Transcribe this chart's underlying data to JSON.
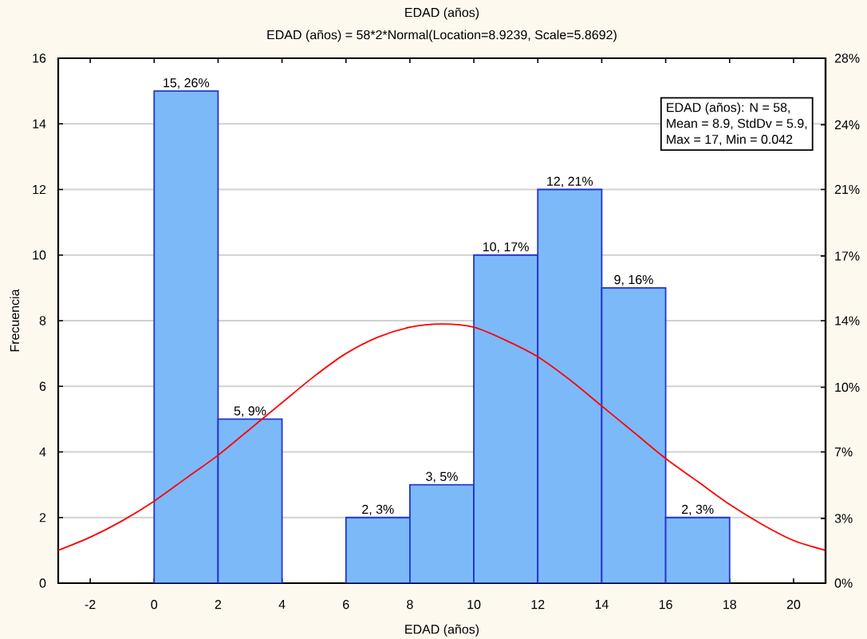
{
  "chart_data": {
    "type": "histogram",
    "title": "EDAD (años)",
    "subtitle": "EDAD (años) = 58*2*Normal(Location=8.9239, Scale=5.8692)",
    "xlabel": "EDAD (años)",
    "ylabel": "Frecuencia",
    "xlim": [
      -3,
      21
    ],
    "xticks": [
      -2,
      0,
      2,
      4,
      6,
      8,
      10,
      12,
      14,
      16,
      18,
      20
    ],
    "ylim": [
      0,
      16
    ],
    "yticks": [
      0,
      2,
      4,
      6,
      8,
      10,
      12,
      14,
      16
    ],
    "y2lim": [
      0,
      27.6
    ],
    "y2ticks": [
      {
        "value": 0,
        "label": "0%"
      },
      {
        "value": 3.4,
        "label": "3%"
      },
      {
        "value": 6.9,
        "label": "7%"
      },
      {
        "value": 10.3,
        "label": "10%"
      },
      {
        "value": 13.8,
        "label": "14%"
      },
      {
        "value": 17.2,
        "label": "17%"
      },
      {
        "value": 20.7,
        "label": "21%"
      },
      {
        "value": 24.1,
        "label": "24%"
      },
      {
        "value": 27.6,
        "label": "28%"
      }
    ],
    "grid": "y",
    "annotations": [
      "EDAD (años): N = 58,",
      "Mean = 8.9, StdDv = 5.9,",
      "Max = 17, Min = 0.042"
    ],
    "series": [
      {
        "type": "histogram",
        "color": "#7cb9f8",
        "bins": [
          0,
          2,
          4,
          6,
          8,
          10,
          12,
          14,
          16,
          18
        ],
        "values": [
          15,
          5,
          0,
          2,
          3,
          10,
          12,
          9,
          2
        ],
        "value_labels": [
          "15, 26%",
          "5, 9%",
          null,
          "2, 3%",
          "3, 5%",
          "10, 17%",
          "12, 21%",
          "9, 16%",
          "2, 3%"
        ]
      },
      {
        "type": "line",
        "color": "#ff0000",
        "x": [
          -3,
          -2,
          -1,
          0,
          1,
          2,
          3,
          4,
          5,
          6,
          7,
          8,
          9,
          10,
          11,
          12,
          13,
          14,
          15,
          16,
          17,
          18,
          19,
          20,
          21
        ],
        "values": [
          1.0,
          1.4,
          1.9,
          2.5,
          3.2,
          3.9,
          4.7,
          5.5,
          6.3,
          7.0,
          7.5,
          7.8,
          7.9,
          7.8,
          7.4,
          6.9,
          6.2,
          5.4,
          4.6,
          3.8,
          3.1,
          2.4,
          1.8,
          1.3,
          1.0
        ]
      }
    ]
  }
}
